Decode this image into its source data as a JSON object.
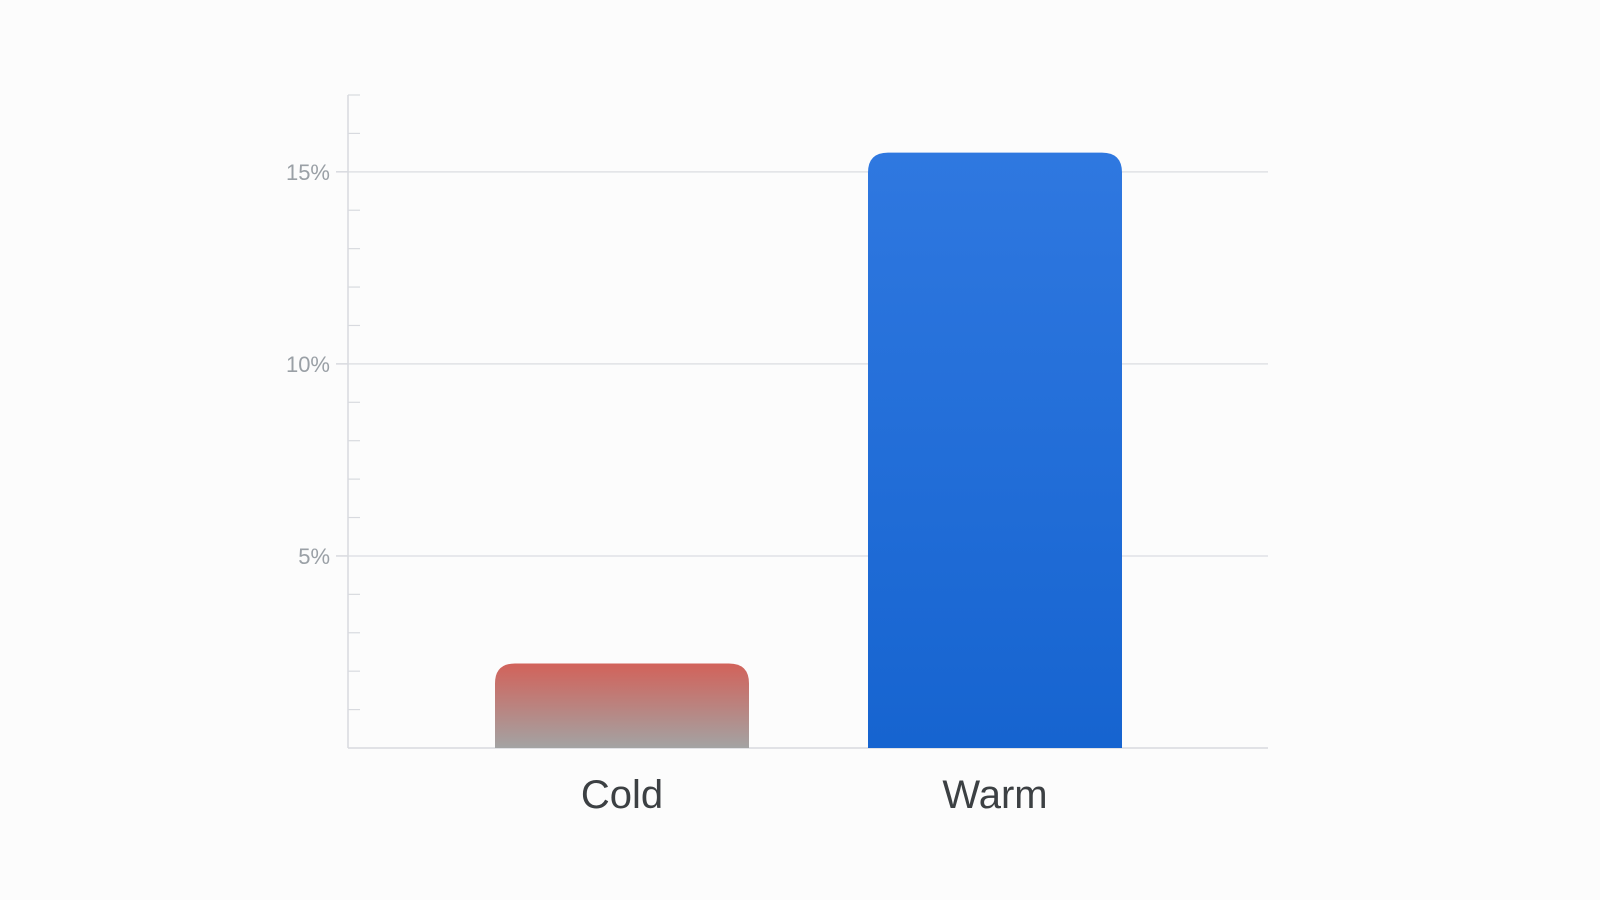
{
  "chart_data": {
    "type": "bar",
    "categories": [
      "Cold",
      "Warm"
    ],
    "values": [
      2.2,
      15.5
    ],
    "ylim": [
      0,
      17
    ],
    "y_ticks": [
      5,
      10,
      15
    ],
    "y_tick_labels": [
      "5%",
      "10%",
      "15%"
    ],
    "y_minor_step": 1,
    "grid": true,
    "title": "",
    "xlabel": "",
    "ylabel": "",
    "colors": {
      "Cold": {
        "top": "#d2625a",
        "bottom": "#a3a3a3"
      },
      "Warm": {
        "top": "#2f78e0",
        "bottom": "#1664d0"
      },
      "grid": "#e0e2e6",
      "axis": "#d8dadf"
    }
  }
}
